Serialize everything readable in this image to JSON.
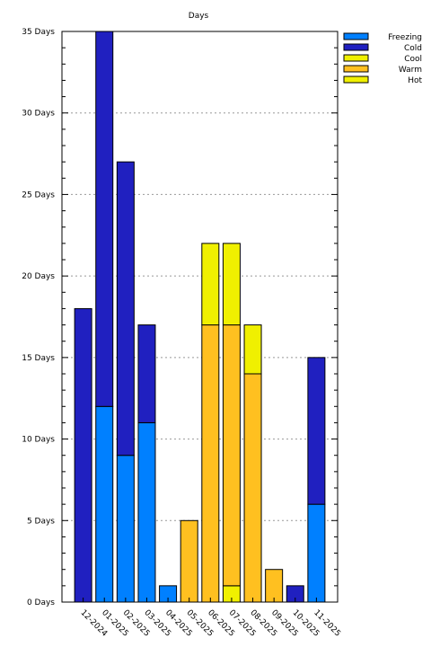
{
  "chart_data": {
    "type": "bar",
    "stacked": true,
    "title": "Days",
    "xlabel": "",
    "ylabel": "",
    "ylim": [
      0,
      35
    ],
    "y_tick_step": 5,
    "y_minor_step": 1,
    "y_tick_suffix": " Days",
    "grid": "horizontal dotted",
    "legend_position": "top-right",
    "categories": [
      "12-2024",
      "01-2025",
      "02-2025",
      "03-2025",
      "04-2025",
      "05-2025",
      "06-2025",
      "07-2025",
      "08-2025",
      "09-2025",
      "10-2025",
      "11-2025"
    ],
    "series": [
      {
        "name": "Freezing",
        "color": "#0080ff",
        "values": [
          0,
          12,
          9,
          11,
          1,
          0,
          0,
          0,
          0,
          0,
          0,
          6
        ]
      },
      {
        "name": "Cold",
        "color": "#2020c0",
        "values": [
          18,
          23,
          18,
          6,
          0,
          0,
          0,
          0,
          0,
          0,
          1,
          9
        ]
      },
      {
        "name": "Cool",
        "color": "#f0f000",
        "values": [
          0,
          0,
          0,
          0,
          0,
          0,
          0,
          1,
          0,
          0,
          0,
          0
        ]
      },
      {
        "name": "Warm",
        "color": "#ffc020",
        "values": [
          0,
          0,
          0,
          0,
          0,
          5,
          17,
          16,
          14,
          2,
          0,
          0
        ]
      },
      {
        "name": "Hot",
        "color": "#f0f000",
        "values": [
          0,
          0,
          0,
          0,
          0,
          0,
          5,
          5,
          3,
          0,
          0,
          0
        ]
      }
    ]
  }
}
